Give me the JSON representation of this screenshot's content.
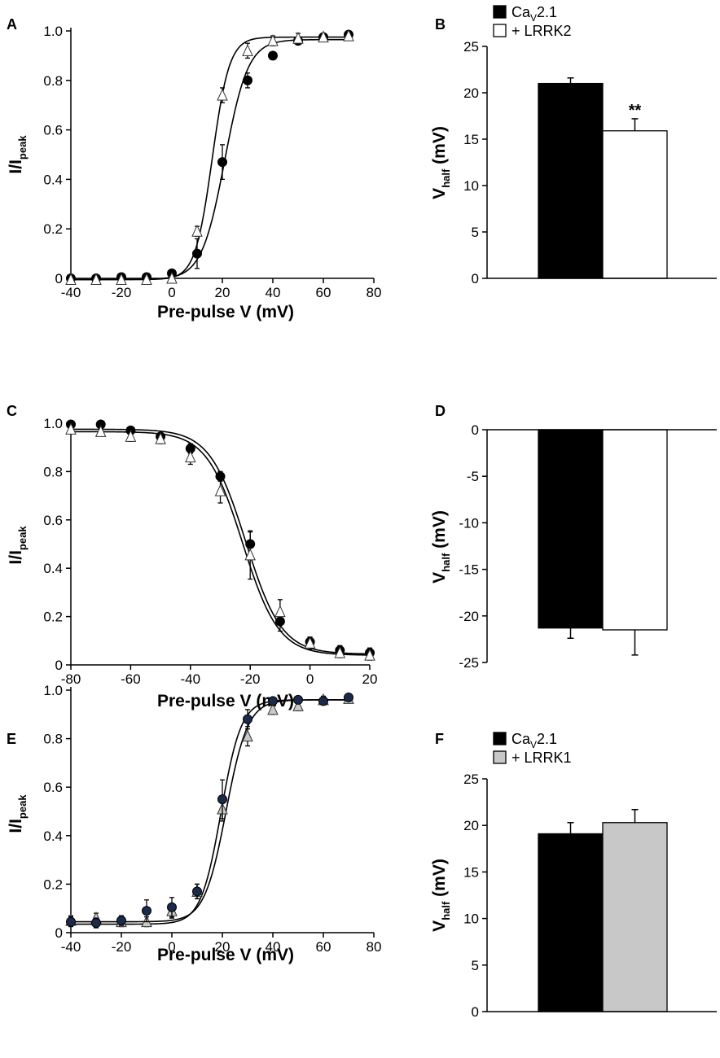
{
  "figure": {
    "background": "#ffffff"
  },
  "chart_data": [
    {
      "panel": "A",
      "type": "scatter",
      "xlabel": "Pre-pulse V (mV)",
      "ylabel_main": "I/I",
      "ylabel_sub": "peak",
      "xlim": [
        -40,
        80
      ],
      "ylim": [
        0,
        1.0
      ],
      "xticks": [
        -40,
        -20,
        0,
        20,
        40,
        60,
        80
      ],
      "xtick_labels": [
        "-40",
        "-20",
        "0",
        "20",
        "40",
        "60",
        "80"
      ],
      "yticks": [
        0,
        0.2,
        0.4,
        0.6,
        0.8,
        1.0
      ],
      "ytick_labels": [
        "0",
        "0.2",
        "0.4",
        "0.6",
        "0.8",
        "1.0"
      ],
      "series": [
        {
          "name": "CaV2.1",
          "marker": "circle",
          "fill": "#000000",
          "x": [
            -40,
            -30,
            -20,
            -10,
            0,
            10,
            20,
            30,
            40,
            50,
            60,
            70
          ],
          "y": [
            0.0,
            0.0,
            0.005,
            0.005,
            0.02,
            0.1,
            0.47,
            0.8,
            0.9,
            0.96,
            0.975,
            0.985
          ],
          "err": [
            0.005,
            0.005,
            0.005,
            0.005,
            0.01,
            0.06,
            0.07,
            0.03,
            0.015,
            0.015,
            0.015,
            0.01
          ],
          "fit": {
            "kind": "boltzmann_act",
            "bottom": -0.005,
            "top": 0.965,
            "vhalf": 21,
            "k": 4.6
          }
        },
        {
          "name": "CaV2.1 + LRRK2",
          "marker": "triangle",
          "fill": "#ffffff",
          "x": [
            -40,
            -30,
            -20,
            -10,
            0,
            10,
            20,
            30,
            40,
            50,
            60,
            70
          ],
          "y": [
            -0.005,
            -0.005,
            -0.005,
            -0.005,
            0.0,
            0.19,
            0.74,
            0.92,
            0.96,
            0.97,
            0.975,
            0.98
          ],
          "err": [
            0.005,
            0.005,
            0.005,
            0.005,
            0.005,
            0.02,
            0.03,
            0.03,
            0.02,
            0.02,
            0.015,
            0.01
          ],
          "fit": {
            "kind": "boltzmann_act",
            "bottom": -0.005,
            "top": 0.975,
            "vhalf": 16,
            "k": 3.4
          }
        }
      ]
    },
    {
      "panel": "B",
      "type": "bar",
      "categories": [
        "CaV2.1",
        "+ LRRK2"
      ],
      "values": [
        21.0,
        15.9
      ],
      "errors": [
        0.6,
        1.3
      ],
      "bar_colors": [
        "#000000",
        "#ffffff"
      ],
      "ylabel_main": "V",
      "ylabel_sub": "half",
      "ylabel_unit": " (mV)",
      "ylim": [
        0,
        25
      ],
      "yticks": [
        0,
        5,
        10,
        15,
        20,
        25
      ],
      "ytick_labels": [
        "0",
        "5",
        "10",
        "15",
        "20",
        "25"
      ],
      "annotation": "**",
      "legend": [
        {
          "label_main": "Ca",
          "label_sub": "V",
          "label_rest": "2.1",
          "fill": "#000000"
        },
        {
          "label_main": "+ LRRK2",
          "label_sub": "",
          "label_rest": "",
          "fill": "#ffffff"
        }
      ]
    },
    {
      "panel": "C",
      "type": "scatter",
      "xlabel": "Pre-pulse V (mV)",
      "ylabel_main": "I/I",
      "ylabel_sub": "peak",
      "xlim": [
        -80,
        20
      ],
      "ylim": [
        0,
        1.0
      ],
      "xticks": [
        -80,
        -60,
        -40,
        -20,
        0,
        20
      ],
      "xtick_labels": [
        "-80",
        "-60",
        "-40",
        "-20",
        "0",
        "20"
      ],
      "yticks": [
        0,
        0.2,
        0.4,
        0.6,
        0.8,
        1.0
      ],
      "ytick_labels": [
        "0",
        "0.2",
        "0.4",
        "0.6",
        "0.8",
        "1.0"
      ],
      "series": [
        {
          "name": "CaV2.1",
          "marker": "circle",
          "fill": "#000000",
          "x": [
            -80,
            -70,
            -60,
            -50,
            -40,
            -30,
            -20,
            -10,
            0,
            10,
            20
          ],
          "y": [
            0.995,
            0.995,
            0.97,
            0.945,
            0.895,
            0.78,
            0.5,
            0.18,
            0.095,
            0.06,
            0.05
          ],
          "err": [
            0.01,
            0.01,
            0.015,
            0.015,
            0.02,
            0.02,
            0.05,
            0.04,
            0.02,
            0.02,
            0.02
          ],
          "fit": {
            "kind": "boltzmann_inact",
            "bottom": 0.045,
            "top": 0.975,
            "vhalf": -21.5,
            "k": 6.0
          }
        },
        {
          "name": "CaV2.1 + LRRK2",
          "marker": "triangle",
          "fill": "#ffffff",
          "x": [
            -80,
            -70,
            -60,
            -50,
            -40,
            -30,
            -20,
            -10,
            0,
            10,
            20
          ],
          "y": [
            0.975,
            0.965,
            0.945,
            0.935,
            0.86,
            0.72,
            0.455,
            0.22,
            0.09,
            0.05,
            0.04
          ],
          "err": [
            0.015,
            0.015,
            0.02,
            0.02,
            0.03,
            0.05,
            0.1,
            0.05,
            0.025,
            0.02,
            0.02
          ],
          "fit": {
            "kind": "boltzmann_inact",
            "bottom": 0.04,
            "top": 0.965,
            "vhalf": -22.5,
            "k": 6.0
          }
        }
      ]
    },
    {
      "panel": "D",
      "type": "bar",
      "categories": [
        "CaV2.1",
        "+ LRRK2"
      ],
      "values": [
        -21.3,
        -21.5
      ],
      "errors": [
        1.1,
        2.7
      ],
      "bar_colors": [
        "#000000",
        "#ffffff"
      ],
      "ylabel_main": "V",
      "ylabel_sub": "half",
      "ylabel_unit": " (mV)",
      "ylim": [
        -25,
        0
      ],
      "yticks": [
        0,
        -5,
        -10,
        -15,
        -20,
        -25
      ],
      "ytick_labels": [
        "0",
        "-5",
        "-10",
        "-15",
        "-20",
        "-25"
      ]
    },
    {
      "panel": "E",
      "type": "scatter",
      "xlabel": "Pre-pulse V (mV)",
      "ylabel_main": "I/I",
      "ylabel_sub": "peak",
      "xlim": [
        -40,
        80
      ],
      "ylim": [
        0,
        1.0
      ],
      "xticks": [
        -40,
        -20,
        0,
        20,
        40,
        60,
        80
      ],
      "xtick_labels": [
        "-40",
        "-20",
        "0",
        "20",
        "40",
        "60",
        "80"
      ],
      "yticks": [
        0,
        0.2,
        0.4,
        0.6,
        0.8,
        1.0
      ],
      "ytick_labels": [
        "0",
        "0.2",
        "0.4",
        "0.6",
        "0.8",
        "1.0"
      ],
      "series": [
        {
          "name": "CaV2.1 + LRRK1",
          "marker": "triangle",
          "fill": "#c8c8c8",
          "x": [
            -40,
            -30,
            -20,
            -10,
            0,
            10,
            20,
            30,
            40,
            50,
            60,
            70
          ],
          "y": [
            0.05,
            0.06,
            0.045,
            0.045,
            0.09,
            0.17,
            0.51,
            0.81,
            0.92,
            0.935,
            0.96,
            0.965
          ],
          "err": [
            0.02,
            0.02,
            0.02,
            0.02,
            0.03,
            0.03,
            0.05,
            0.04,
            0.02,
            0.02,
            0.015,
            0.01
          ],
          "fit": {
            "kind": "boltzmann_act",
            "bottom": 0.045,
            "top": 0.96,
            "vhalf": 21.5,
            "k": 4.3
          }
        },
        {
          "name": "CaV2.1",
          "marker": "circle",
          "fill": "#1a2a4a",
          "x": [
            -40,
            -30,
            -20,
            -10,
            0,
            10,
            20,
            30,
            40,
            50,
            60,
            70
          ],
          "y": [
            0.045,
            0.04,
            0.05,
            0.09,
            0.105,
            0.17,
            0.55,
            0.88,
            0.955,
            0.96,
            0.955,
            0.97
          ],
          "err": [
            0.02,
            0.02,
            0.02,
            0.045,
            0.04,
            0.03,
            0.08,
            0.04,
            0.015,
            0.015,
            0.015,
            0.01
          ],
          "fit": {
            "kind": "boltzmann_act",
            "bottom": 0.035,
            "top": 0.96,
            "vhalf": 19.5,
            "k": 4.0
          }
        }
      ]
    },
    {
      "panel": "F",
      "type": "bar",
      "categories": [
        "CaV2.1",
        "+ LRRK1"
      ],
      "values": [
        19.1,
        20.3
      ],
      "errors": [
        1.2,
        1.4
      ],
      "bar_colors": [
        "#000000",
        "#c8c8c8"
      ],
      "ylabel_main": "V",
      "ylabel_sub": "half",
      "ylabel_unit": " (mV)",
      "ylim": [
        0,
        25
      ],
      "yticks": [
        0,
        5,
        10,
        15,
        20,
        25
      ],
      "ytick_labels": [
        "0",
        "5",
        "10",
        "15",
        "20",
        "25"
      ],
      "legend": [
        {
          "label_main": "Ca",
          "label_sub": "V",
          "label_rest": "2.1",
          "fill": "#000000"
        },
        {
          "label_main": "+ LRRK1",
          "label_sub": "",
          "label_rest": "",
          "fill": "#c8c8c8"
        }
      ]
    }
  ]
}
